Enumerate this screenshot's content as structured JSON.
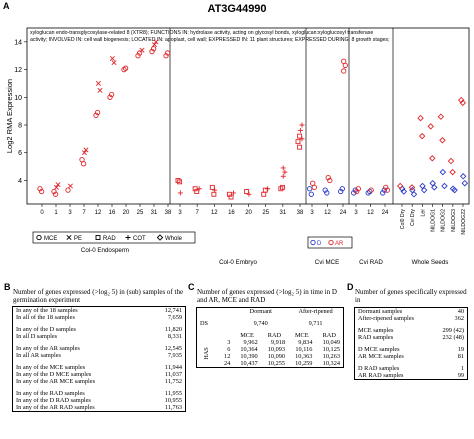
{
  "panel_a": {
    "letter": "A",
    "gene_id": "AT3G44990",
    "description_lines": [
      "xyloglucan endo-transglycosylase-related 8 (XTR8); FUNCTIONS IN: hydrolase activity, acting on glycosyl bonds, xyloglucan:xyloglucosyl transferase",
      "activity; INVOLVED IN: cell wall biogenesis; LOCATED IN: apoplast, cell wall; EXPRESSED IN: 11 plant structures; EXPRESSED DURING: 8 growth stages;"
    ],
    "ylabel": "Log2 RMA Expression",
    "yticks": [
      "4",
      "6",
      "8",
      "10",
      "12",
      "14"
    ],
    "colors": {
      "red": "#e0262b",
      "blue": "#2a3cc8"
    },
    "sections": [
      {
        "name": "Col-0 Endosperm",
        "ticks": [
          "0",
          "1",
          "3",
          "7",
          "12",
          "16",
          "20",
          "25",
          "31",
          "38"
        ]
      },
      {
        "name": "Col-0 Embryo",
        "ticks": [
          "3",
          "7",
          "12",
          "16",
          "20",
          "25",
          "31",
          "38"
        ]
      },
      {
        "name": "Cvi MCE",
        "ticks": [
          "3",
          "12",
          "24"
        ]
      },
      {
        "name": "Cvi RAD",
        "ticks": [
          "3",
          "12",
          "24"
        ]
      },
      {
        "name": "Whole Seeds",
        "ticks": [
          "Col0 Dry",
          "Cvi Dry",
          "Ler",
          "NILDOG1",
          "NILDOG2",
          "NILDOG3",
          "NILDOG22"
        ]
      }
    ],
    "legend1": {
      "symbols": [
        "o",
        "×",
        "□",
        "+",
        "◇"
      ],
      "labels": [
        "MCE",
        "PE",
        "RAD",
        "COT",
        "Whole"
      ]
    },
    "legend2": {
      "labels": [
        "D",
        "AR"
      ]
    }
  },
  "chart_data": {
    "type": "scatter",
    "ylabel": "Log2 RMA Expression",
    "ylim": [
      2.3,
      15
    ],
    "groups": [
      {
        "section": "Col-0 Endosperm",
        "tissue": "MCE",
        "points": [
          [
            0,
            3.4
          ],
          [
            0,
            3.2
          ],
          [
            1,
            3.2
          ],
          [
            1,
            3.0
          ],
          [
            3,
            3.3
          ],
          [
            7,
            5.2
          ],
          [
            7,
            5.5
          ],
          [
            12,
            8.9
          ],
          [
            12,
            8.7
          ],
          [
            16,
            10.2
          ],
          [
            16,
            10.0
          ],
          [
            20,
            12.1
          ],
          [
            20,
            12.0
          ],
          [
            25,
            13.2
          ],
          [
            25,
            13.0
          ],
          [
            31,
            13.5
          ],
          [
            31,
            13.3
          ],
          [
            38,
            13.2
          ],
          [
            38,
            13.0
          ]
        ]
      },
      {
        "section": "Col-0 Endosperm",
        "tissue": "PE",
        "points": [
          [
            1,
            3.5
          ],
          [
            1,
            3.7
          ],
          [
            3,
            3.6
          ],
          [
            7,
            6.2
          ],
          [
            7,
            6.0
          ],
          [
            12,
            10.5
          ],
          [
            12,
            11.0
          ],
          [
            16,
            12.5
          ],
          [
            16,
            12.8
          ],
          [
            25,
            13.4
          ],
          [
            31,
            13.8
          ],
          [
            31,
            14.0
          ]
        ]
      },
      {
        "section": "Col-0 Embryo",
        "tissue": "RAD",
        "points": [
          [
            3,
            4.0
          ],
          [
            3,
            3.9
          ],
          [
            7,
            3.4
          ],
          [
            7,
            3.2
          ],
          [
            12,
            3.5
          ],
          [
            12,
            3.0
          ],
          [
            16,
            3.0
          ],
          [
            16,
            2.8
          ],
          [
            20,
            3.2
          ],
          [
            25,
            3.3
          ],
          [
            25,
            3.0
          ],
          [
            31,
            3.5
          ],
          [
            31,
            3.4
          ],
          [
            38,
            6.4
          ],
          [
            38,
            6.8
          ],
          [
            38,
            7.2
          ]
        ]
      },
      {
        "section": "Col-0 Embryo",
        "tissue": "COT",
        "points": [
          [
            3,
            3.1
          ],
          [
            7,
            3.4
          ],
          [
            12,
            3.3
          ],
          [
            16,
            3.1
          ],
          [
            20,
            3.0
          ],
          [
            25,
            3.4
          ],
          [
            31,
            4.3
          ],
          [
            31,
            4.6
          ],
          [
            31,
            4.9
          ],
          [
            38,
            7.0
          ],
          [
            38,
            7.6
          ],
          [
            38,
            8.0
          ]
        ]
      },
      {
        "section": "Cvi MCE",
        "state": "D",
        "points": [
          [
            3,
            3.4
          ],
          [
            3,
            3.0
          ],
          [
            12,
            3.3
          ],
          [
            12,
            3.1
          ],
          [
            24,
            3.2
          ],
          [
            24,
            3.4
          ]
        ]
      },
      {
        "section": "Cvi MCE",
        "state": "AR",
        "points": [
          [
            3,
            3.8
          ],
          [
            3,
            3.5
          ],
          [
            12,
            4.2
          ],
          [
            12,
            4.0
          ],
          [
            24,
            11.9
          ],
          [
            24,
            12.3
          ],
          [
            24,
            12.6
          ]
        ]
      },
      {
        "section": "Cvi RAD",
        "state": "D",
        "points": [
          [
            3,
            3.1
          ],
          [
            3,
            3.3
          ],
          [
            12,
            3.1
          ],
          [
            12,
            3.2
          ],
          [
            24,
            3.1
          ],
          [
            24,
            3.3
          ]
        ]
      },
      {
        "section": "Cvi RAD",
        "state": "AR",
        "points": [
          [
            3,
            3.2
          ],
          [
            3,
            3.4
          ],
          [
            12,
            3.3
          ],
          [
            24,
            3.3
          ],
          [
            24,
            3.5
          ]
        ]
      },
      {
        "section": "Whole Seeds",
        "state": "D",
        "points": [
          [
            "Col0 Dry",
            3.4
          ],
          [
            "Col0 Dry",
            3.2
          ],
          [
            "Cvi Dry",
            3.3
          ],
          [
            "Cvi Dry",
            3.0
          ],
          [
            "Ler",
            3.6
          ],
          [
            "Ler",
            3.3
          ],
          [
            "NILDOG1",
            3.8
          ],
          [
            "NILDOG1",
            3.5
          ],
          [
            "NILDOG2",
            4.6
          ],
          [
            "NILDOG2",
            3.6
          ],
          [
            "NILDOG3",
            3.4
          ],
          [
            "NILDOG3",
            3.3
          ],
          [
            "NILDOG22",
            4.3
          ],
          [
            "NILDOG22",
            3.8
          ]
        ]
      },
      {
        "section": "Whole Seeds",
        "state": "AR",
        "points": [
          [
            "Col0 Dry",
            3.6
          ],
          [
            "Cvi Dry",
            3.5
          ],
          [
            "Ler",
            8.5
          ],
          [
            "Ler",
            7.2
          ],
          [
            "NILDOG1",
            7.9
          ],
          [
            "NILDOG1",
            5.6
          ],
          [
            "NILDOG2",
            8.6
          ],
          [
            "NILDOG2",
            6.9
          ],
          [
            "NILDOG3",
            5.4
          ],
          [
            "NILDOG3",
            4.6
          ],
          [
            "NILDOG22",
            9.8
          ],
          [
            "NILDOG22",
            9.6
          ]
        ]
      }
    ]
  },
  "panel_b": {
    "letter": "B",
    "title": "Number of genes expressed (>log₂ 5) in (sub) samples of the germination experiment",
    "rows": [
      [
        "In any of the 18 samples",
        "12,741"
      ],
      [
        "In all of the 18 samples",
        "7,659"
      ],
      null,
      [
        "In any of the D samples",
        "11,820"
      ],
      [
        "In all D samples",
        "8,331"
      ],
      null,
      [
        "In any of the AR samples",
        "12,545"
      ],
      [
        "In all AR samples",
        "7,935"
      ],
      null,
      [
        "In any of the MCE samples",
        "11,944"
      ],
      [
        "In any of the D MCE samples",
        "11,037"
      ],
      [
        "In any of the AR MCE samples",
        "11,752"
      ],
      null,
      [
        "In any of the RAD samples",
        "11,955"
      ],
      [
        "In any of the D RAD samples",
        "10,955"
      ],
      [
        "In any of the AR RAD samples",
        "11,763"
      ]
    ]
  },
  "panel_c": {
    "letter": "C",
    "title": "Number of genes expressed (>log₂ 5) in time in D and AR, MCE and RAD",
    "col_dormant": "Dormant",
    "col_afterripened": "After-ripened",
    "ds_label": "DS",
    "ds_dormant": "9,740",
    "ds_afterripened": "9,711",
    "sub_mce": "MCE",
    "sub_rad": "RAD",
    "has_label": "HAS",
    "rows": [
      [
        "3",
        "9,962",
        "9,918",
        "9,834",
        "10,049"
      ],
      [
        "6",
        "10,364",
        "10,093",
        "10,116",
        "10,125"
      ],
      [
        "12",
        "10,390",
        "10,090",
        "10,363",
        "10,263"
      ],
      [
        "24",
        "10,437",
        "10,255",
        "10,259",
        "10,324"
      ]
    ]
  },
  "panel_d": {
    "letter": "D",
    "title": "Number of genes specifically expressed in",
    "rows": [
      [
        "Dormant samples",
        "40"
      ],
      [
        "After-ripened samples",
        "362"
      ],
      null,
      [
        "MCE samples",
        "299 (42)"
      ],
      [
        "RAD samples",
        "232 (48)"
      ],
      null,
      [
        "D MCE samples",
        "19"
      ],
      [
        "AR MCE samples",
        "81"
      ],
      null,
      [
        "D RAD samples",
        "1"
      ],
      [
        "AR RAD samples",
        "99"
      ]
    ]
  }
}
